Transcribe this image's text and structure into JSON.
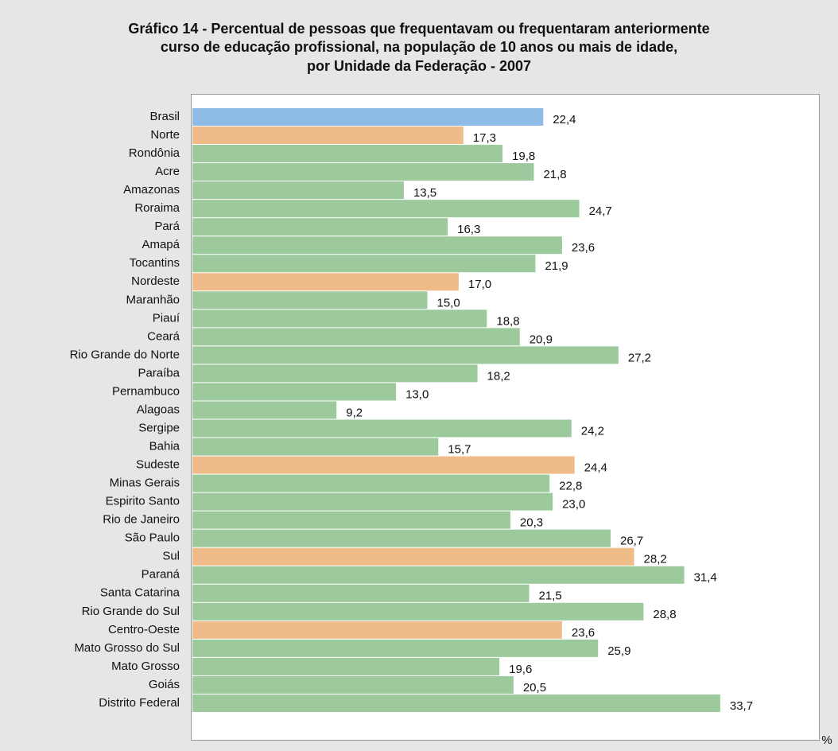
{
  "chart_data": {
    "type": "bar",
    "orientation": "horizontal",
    "title": [
      "Gráfico 14 - Percentual de pessoas que frequentavam ou frequentaram anteriormente",
      "curso de educação profissional, na população de 10 anos ou mais de idade,",
      "por Unidade da Federação - 2007"
    ],
    "x_label": "%",
    "categories": [
      "Brasil",
      "Norte",
      "Rondônia",
      "Acre",
      "Amazonas",
      "Roraima",
      "Pará",
      "Amapá",
      "Tocantins",
      "Nordeste",
      "Maranhão",
      "Piauí",
      "Ceará",
      "Rio Grande do Norte",
      "Paraíba",
      "Pernambuco",
      "Alagoas",
      "Sergipe",
      "Bahia",
      "Sudeste",
      "Minas Gerais",
      "Espirito Santo",
      "Rio de Janeiro",
      "São Paulo",
      "Sul",
      "Paraná",
      "Santa Catarina",
      "Rio Grande do Sul",
      "Centro-Oeste",
      "Mato Grosso do Sul",
      "Mato Grosso",
      "Goiás",
      "Distrito Federal"
    ],
    "values": [
      22.4,
      17.3,
      19.8,
      21.8,
      13.5,
      24.7,
      16.3,
      23.6,
      21.9,
      17.0,
      15.0,
      18.8,
      20.9,
      27.2,
      18.2,
      13.0,
      9.2,
      24.2,
      15.7,
      24.4,
      22.8,
      23.0,
      20.3,
      26.7,
      28.2,
      31.4,
      21.5,
      28.8,
      23.6,
      25.9,
      19.6,
      20.5,
      33.7
    ],
    "value_labels": [
      "22,4",
      "17,3",
      "19,8",
      "21,8",
      "13,5",
      "24,7",
      "16,3",
      "23,6",
      "21,9",
      "17,0",
      "15,0",
      "18,8",
      "20,9",
      "27,2",
      "18,2",
      "13,0",
      "9,2",
      "24,2",
      "15,7",
      "24,4",
      "22,8",
      "23,0",
      "20,3",
      "26,7",
      "28,2",
      "31,4",
      "21,5",
      "28,8",
      "23,6",
      "25,9",
      "19,6",
      "20,5",
      "33,7"
    ],
    "colors": [
      "#8dbbe6",
      "#efbb88",
      "#9dca9d",
      "#9dca9d",
      "#9dca9d",
      "#9dca9d",
      "#9dca9d",
      "#9dca9d",
      "#9dca9d",
      "#efbb88",
      "#9dca9d",
      "#9dca9d",
      "#9dca9d",
      "#9dca9d",
      "#9dca9d",
      "#9dca9d",
      "#9dca9d",
      "#9dca9d",
      "#9dca9d",
      "#efbb88",
      "#9dca9d",
      "#9dca9d",
      "#9dca9d",
      "#9dca9d",
      "#efbb88",
      "#9dca9d",
      "#9dca9d",
      "#9dca9d",
      "#efbb88",
      "#9dca9d",
      "#9dca9d",
      "#9dca9d",
      "#9dca9d"
    ],
    "xlim": [
      0,
      40
    ]
  }
}
